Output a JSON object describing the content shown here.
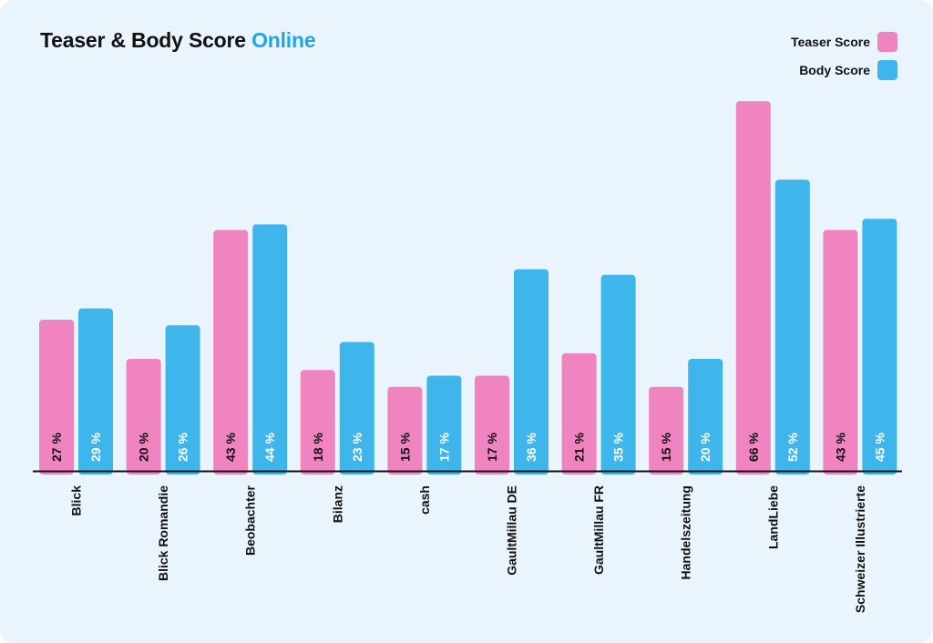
{
  "title": {
    "main": "Teaser & Body Score",
    "accent": "Online"
  },
  "legend": {
    "teaser": "Teaser Score",
    "body": "Body Score"
  },
  "colors": {
    "teaser": "#f084c0",
    "body": "#3fb6eb",
    "title_accent": "#1ea6e4",
    "background": "#eaf4fd"
  },
  "chart_data": {
    "type": "bar",
    "title": "Teaser & Body Score Online",
    "categories": [
      "Blick",
      "Blick Romandie",
      "Beobachter",
      "Bilanz",
      "cash",
      "GaultMillau DE",
      "GaultMillau FR",
      "Handelszeitung",
      "LandLiebe",
      "Schweizer Illustrierte"
    ],
    "series": [
      {
        "name": "Teaser Score",
        "values": [
          27,
          20,
          43,
          18,
          15,
          17,
          21,
          15,
          66,
          43
        ]
      },
      {
        "name": "Body Score",
        "values": [
          29,
          26,
          44,
          23,
          17,
          36,
          35,
          20,
          52,
          45
        ]
      }
    ],
    "value_suffix": " %",
    "grid": false,
    "legend_position": "top-right"
  }
}
